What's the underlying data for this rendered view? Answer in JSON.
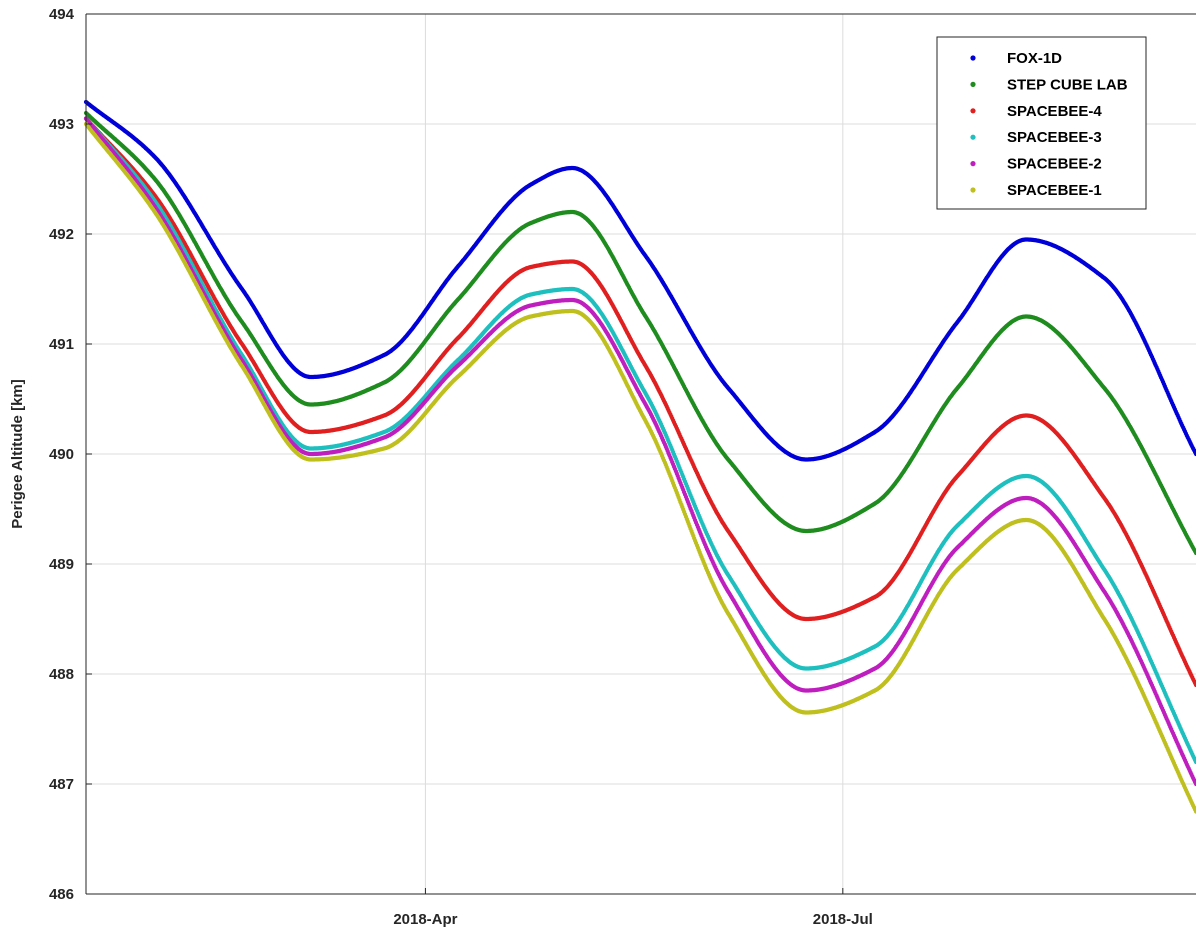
{
  "chart_data": {
    "type": "scatter",
    "title": "",
    "xlabel": "",
    "ylabel": "Perigee Altitude [km]",
    "x_ticks": [
      "2018-Apr",
      "2018-Jul"
    ],
    "x_tick_dates": [
      "2018-04-01",
      "2018-07-01"
    ],
    "x_range": [
      "2018-01-17",
      "2018-09-16"
    ],
    "ylim": [
      486,
      494
    ],
    "y_ticks": [
      486,
      487,
      488,
      489,
      490,
      491,
      492,
      493,
      494
    ],
    "grid": true,
    "legend_position": "top-right",
    "x": [
      "2018-01-17",
      "2018-02-01",
      "2018-02-20",
      "2018-03-07",
      "2018-03-23",
      "2018-04-08",
      "2018-04-24",
      "2018-05-03",
      "2018-05-19",
      "2018-06-06",
      "2018-06-23",
      "2018-07-08",
      "2018-07-26",
      "2018-08-10",
      "2018-08-27",
      "2018-09-16"
    ],
    "series": [
      {
        "name": "FOX-1D",
        "color": "#0000d8",
        "values": [
          493.2,
          492.7,
          491.5,
          490.7,
          490.9,
          491.7,
          492.45,
          492.6,
          491.8,
          490.6,
          489.95,
          490.2,
          491.2,
          491.95,
          491.6,
          490.0
        ]
      },
      {
        "name": "STEP CUBE LAB",
        "color": "#1e8c1e",
        "values": [
          493.1,
          492.5,
          491.2,
          490.45,
          490.65,
          491.4,
          492.1,
          492.2,
          491.25,
          489.95,
          489.3,
          489.55,
          490.6,
          491.25,
          490.6,
          489.1
        ]
      },
      {
        "name": "SPACEBEE-4",
        "color": "#e02020",
        "values": [
          493.05,
          492.35,
          491.0,
          490.2,
          490.35,
          491.05,
          491.7,
          491.75,
          490.8,
          489.3,
          488.5,
          488.7,
          489.8,
          490.35,
          489.6,
          487.9
        ]
      },
      {
        "name": "SPACEBEE-3",
        "color": "#1fbfbf",
        "values": [
          493.05,
          492.3,
          490.9,
          490.05,
          490.2,
          490.85,
          491.45,
          491.5,
          490.55,
          488.9,
          488.05,
          488.25,
          489.35,
          489.8,
          488.95,
          487.2
        ]
      },
      {
        "name": "SPACEBEE-2",
        "color": "#bf1fbf",
        "values": [
          493.05,
          492.25,
          490.85,
          490.0,
          490.15,
          490.8,
          491.35,
          491.4,
          490.45,
          488.75,
          487.85,
          488.05,
          489.15,
          489.6,
          488.75,
          487.0
        ]
      },
      {
        "name": "SPACEBEE-1",
        "color": "#bfbf1f",
        "values": [
          493.0,
          492.2,
          490.8,
          489.95,
          490.05,
          490.7,
          491.25,
          491.3,
          490.3,
          488.55,
          487.65,
          487.85,
          488.95,
          489.4,
          488.5,
          486.75
        ]
      }
    ]
  }
}
